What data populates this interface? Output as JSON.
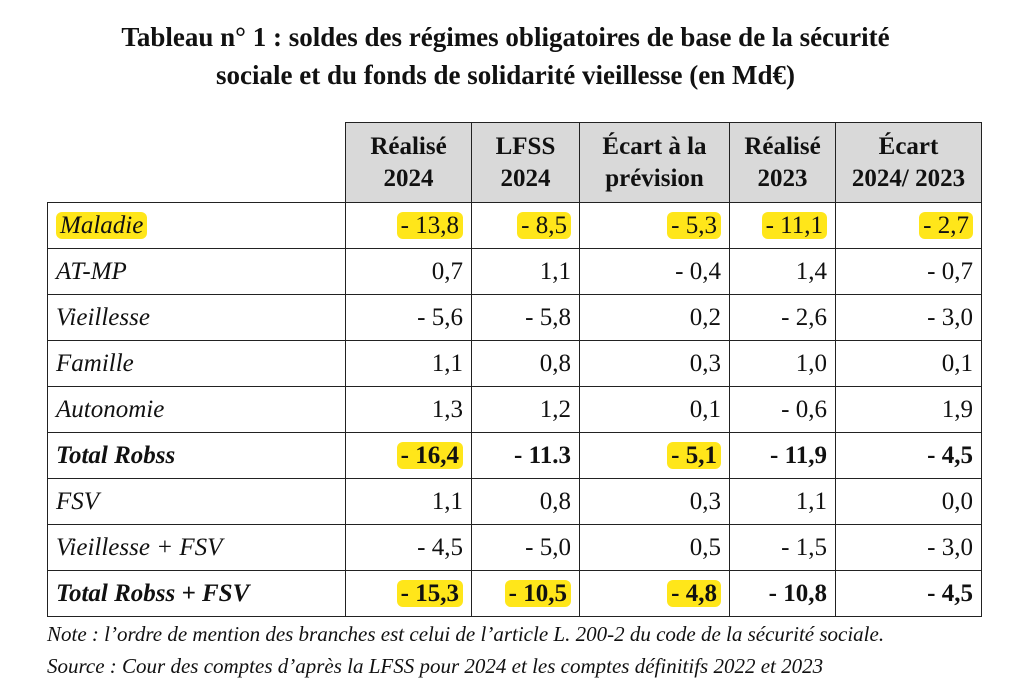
{
  "title_line1": "Tableau n° 1 : soldes des régimes obligatoires de base de la sécurité",
  "title_line2": "sociale et du fonds de solidarité vieillesse (en Md€)",
  "headers": [
    {
      "line1": "Réalisé",
      "line2": "2024"
    },
    {
      "line1": "LFSS",
      "line2": "2024"
    },
    {
      "line1": "Écart à la",
      "line2": "prévision"
    },
    {
      "line1": "Réalisé",
      "line2": "2023"
    },
    {
      "line1": "Écart",
      "line2": "2024/ 2023"
    }
  ],
  "rows": [
    {
      "label": "Maladie",
      "total": false,
      "label_highlight": true,
      "cells": [
        {
          "v": "- 13,8",
          "hl": true
        },
        {
          "v": "- 8,5",
          "hl": true
        },
        {
          "v": "- 5,3",
          "hl": true
        },
        {
          "v": "- 11,1",
          "hl": true
        },
        {
          "v": "- 2,7",
          "hl": true
        }
      ]
    },
    {
      "label": "AT-MP",
      "total": false,
      "label_highlight": false,
      "cells": [
        {
          "v": "0,7",
          "hl": false
        },
        {
          "v": "1,1",
          "hl": false
        },
        {
          "v": "- 0,4",
          "hl": false
        },
        {
          "v": "1,4",
          "hl": false
        },
        {
          "v": "- 0,7",
          "hl": false
        }
      ]
    },
    {
      "label": "Vieillesse",
      "total": false,
      "label_highlight": false,
      "cells": [
        {
          "v": "- 5,6",
          "hl": false
        },
        {
          "v": "- 5,8",
          "hl": false
        },
        {
          "v": "0,2",
          "hl": false
        },
        {
          "v": "- 2,6",
          "hl": false
        },
        {
          "v": "- 3,0",
          "hl": false
        }
      ]
    },
    {
      "label": "Famille",
      "total": false,
      "label_highlight": false,
      "cells": [
        {
          "v": "1,1",
          "hl": false
        },
        {
          "v": "0,8",
          "hl": false
        },
        {
          "v": "0,3",
          "hl": false
        },
        {
          "v": "1,0",
          "hl": false
        },
        {
          "v": "0,1",
          "hl": false
        }
      ]
    },
    {
      "label": "Autonomie",
      "total": false,
      "label_highlight": false,
      "cells": [
        {
          "v": "1,3",
          "hl": false
        },
        {
          "v": "1,2",
          "hl": false
        },
        {
          "v": "0,1",
          "hl": false
        },
        {
          "v": "- 0,6",
          "hl": false
        },
        {
          "v": "1,9",
          "hl": false
        }
      ]
    },
    {
      "label": "Total Robss",
      "total": true,
      "label_highlight": false,
      "cells": [
        {
          "v": "- 16,4",
          "hl": true
        },
        {
          "v": "- 11.3",
          "hl": false
        },
        {
          "v": "- 5,1",
          "hl": true
        },
        {
          "v": "- 11,9",
          "hl": false
        },
        {
          "v": "- 4,5",
          "hl": false
        }
      ]
    },
    {
      "label": "FSV",
      "total": false,
      "label_highlight": false,
      "cells": [
        {
          "v": "1,1",
          "hl": false
        },
        {
          "v": "0,8",
          "hl": false
        },
        {
          "v": "0,3",
          "hl": false
        },
        {
          "v": "1,1",
          "hl": false
        },
        {
          "v": "0,0",
          "hl": false
        }
      ]
    },
    {
      "label": "Vieillesse + FSV",
      "total": false,
      "label_highlight": false,
      "cells": [
        {
          "v": "- 4,5",
          "hl": false
        },
        {
          "v": "- 5,0",
          "hl": false
        },
        {
          "v": "0,5",
          "hl": false
        },
        {
          "v": "- 1,5",
          "hl": false
        },
        {
          "v": "- 3,0",
          "hl": false
        }
      ]
    },
    {
      "label": "Total Robss + FSV",
      "total": true,
      "label_highlight": false,
      "cells": [
        {
          "v": "- 15,3",
          "hl": true
        },
        {
          "v": "- 10,5",
          "hl": true
        },
        {
          "v": "- 4,8",
          "hl": true
        },
        {
          "v": "- 10,8",
          "hl": false
        },
        {
          "v": "- 4,5",
          "hl": false
        }
      ]
    }
  ],
  "note": "Note : l’ordre de mention des branches est celui de l’article L. 200-2 du code de la sécurité sociale.",
  "source": "Source : Cour des comptes d’après la LFSS pour 2024 et les comptes définitifs 2022 et 2023",
  "colors": {
    "highlight": "#ffe61a",
    "header_bg": "#d9d9d9",
    "border": "#222222"
  }
}
